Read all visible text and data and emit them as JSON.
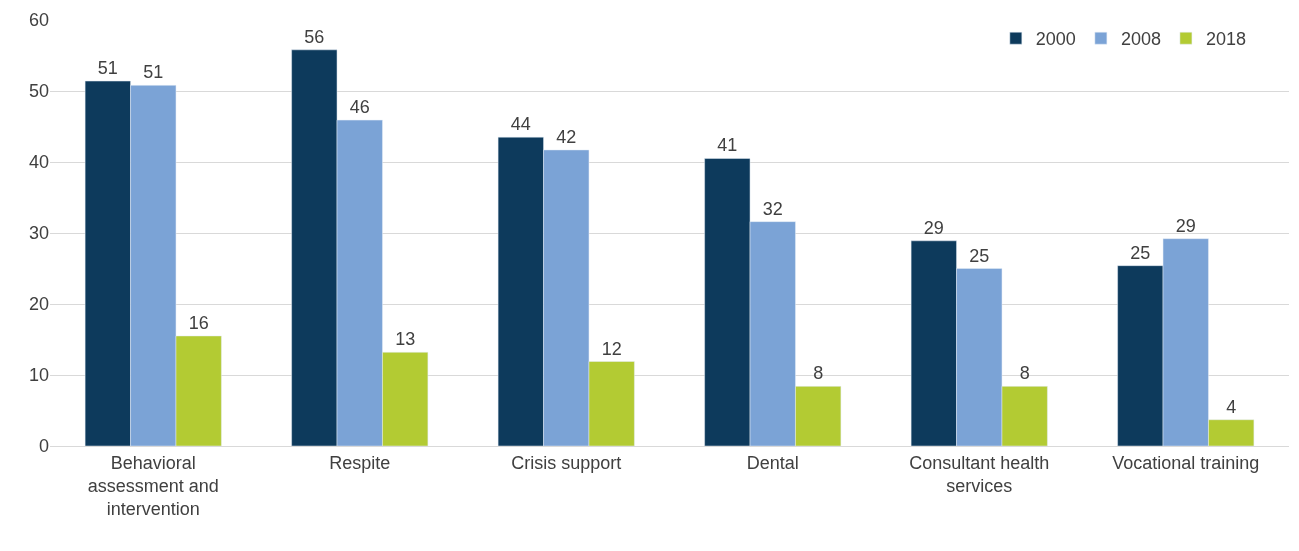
{
  "chart_data": {
    "type": "bar",
    "categories": [
      "Behavioral assessment and intervention",
      "Respite",
      "Crisis support",
      "Dental",
      "Consultant health services",
      "Vocational training"
    ],
    "series": [
      {
        "name": "2000",
        "color": "#0d3a5c",
        "values": [
          51.4,
          55.8,
          43.5,
          40.5,
          28.9,
          25.4
        ],
        "value_labels": [
          "51",
          "56",
          "44",
          "41",
          "29",
          "25"
        ]
      },
      {
        "name": "2008",
        "color": "#7ba3d6",
        "values": [
          50.8,
          45.9,
          41.7,
          31.6,
          25.0,
          29.2
        ],
        "value_labels": [
          "51",
          "46",
          "42",
          "32",
          "25",
          "29"
        ]
      },
      {
        "name": "2018",
        "color": "#b3cb33",
        "values": [
          15.5,
          13.2,
          11.9,
          8.4,
          8.4,
          3.7
        ],
        "value_labels": [
          "16",
          "13",
          "12",
          "8",
          "8",
          "4"
        ]
      }
    ],
    "ylim": [
      0,
      60
    ],
    "yticks": [
      0,
      10,
      20,
      30,
      40,
      50,
      60
    ],
    "grid": "y",
    "legend": "top right"
  }
}
